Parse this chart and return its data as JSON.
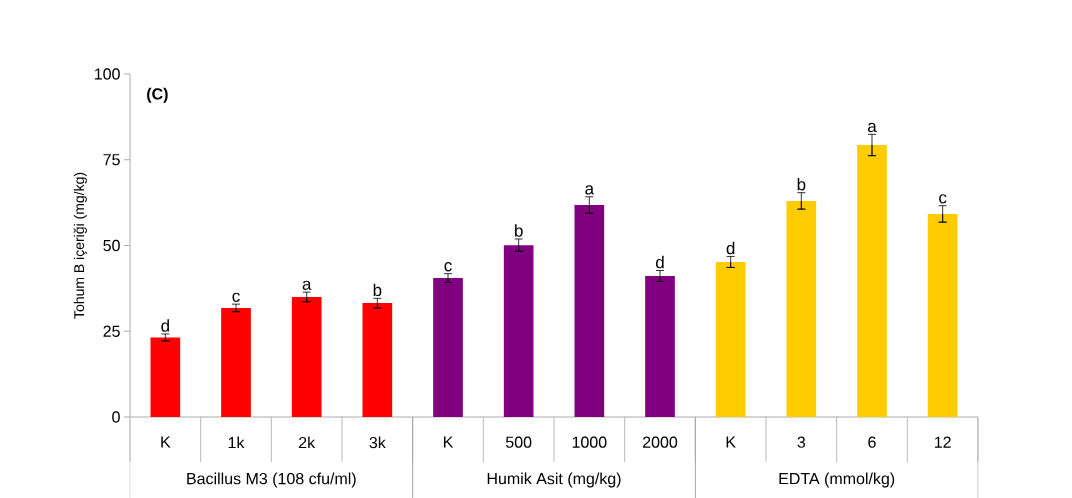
{
  "chart_data": {
    "type": "bar",
    "ylabel": "Tohum B içeriği (mg/kg)",
    "categories": [
      "K",
      "1k",
      "2k",
      "3k",
      "K",
      "500",
      "1000",
      "2000",
      "K",
      "3",
      "6",
      "12"
    ],
    "values": [
      23.2,
      31.8,
      35.0,
      33.2,
      40.5,
      50.1,
      61.8,
      41.1,
      45.2,
      63.0,
      79.3,
      59.2
    ],
    "errors": [
      1.0,
      1.1,
      1.4,
      1.4,
      1.3,
      1.8,
      2.4,
      1.6,
      1.6,
      2.4,
      3.1,
      2.4
    ],
    "colors": [
      "#ff0000",
      "#ff0000",
      "#ff0000",
      "#ff0000",
      "#800080",
      "#800080",
      "#800080",
      "#800080",
      "#ffcc00",
      "#ffcc00",
      "#ffcc00",
      "#ffcc00"
    ],
    "value_labels": [
      "d",
      "c",
      "a",
      "b",
      "c",
      "b",
      "a",
      "d",
      "d",
      "b",
      "a",
      "c"
    ],
    "ylim": [
      0,
      100
    ],
    "yticks": [
      0,
      25,
      50,
      75,
      100
    ],
    "annotations": [
      "(C)",
      "Bacillus M3 (108 cfu/ml)",
      "Humik Asit (mg/kg)",
      "EDTA (mmol/kg)"
    ]
  }
}
